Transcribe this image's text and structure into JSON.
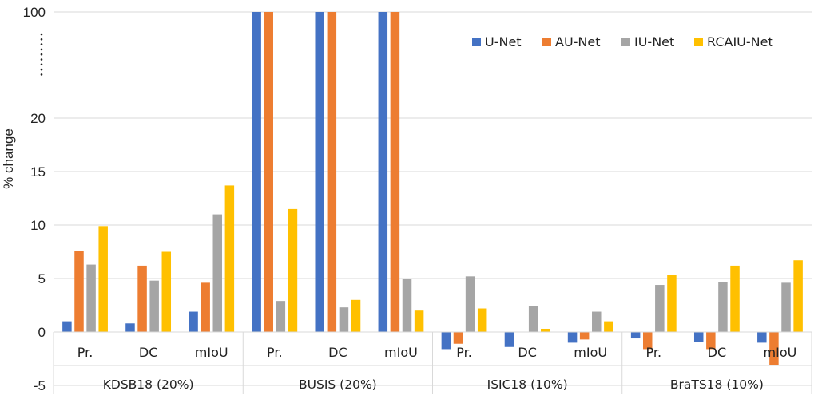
{
  "chart_data": {
    "type": "bar",
    "ylabel": "% change",
    "y_ticks": [
      "100",
      "20",
      "15",
      "10",
      "5",
      "0",
      "-5"
    ],
    "y_break_marker": "⋮⋮",
    "broken_axis": true,
    "categories": [
      "Pr.",
      "DC",
      "mIoU",
      "Pr.",
      "DC",
      "mIoU",
      "Pr.",
      "DC",
      "mIoU",
      "Pr.",
      "DC",
      "mIoU"
    ],
    "groups": [
      "KDSB18 (20%)",
      "BUSIS (20%)",
      "ISIC18 (10%)",
      "BraTS18 (10%)"
    ],
    "series": [
      {
        "name": "U-Net",
        "color": "#4472C4",
        "values": [
          1.0,
          0.8,
          1.9,
          100,
          100,
          100,
          -1.6,
          -1.4,
          -1.0,
          -0.6,
          -0.9,
          -1.0
        ]
      },
      {
        "name": "AU-Net",
        "color": "#ED7D31",
        "values": [
          7.6,
          6.2,
          4.6,
          100,
          100,
          100,
          -1.1,
          0,
          -0.7,
          -1.6,
          -1.6,
          -3.1
        ]
      },
      {
        "name": "IU-Net",
        "color": "#A5A5A5",
        "values": [
          6.3,
          4.8,
          11.0,
          2.9,
          2.3,
          5.0,
          5.2,
          2.4,
          1.9,
          4.4,
          4.7,
          4.6
        ]
      },
      {
        "name": "RCAIU-Net",
        "color": "#FFC000",
        "values": [
          9.9,
          7.5,
          13.7,
          11.5,
          3.0,
          2.0,
          2.2,
          0.3,
          1.0,
          5.3,
          6.2,
          6.7
        ]
      }
    ],
    "legend_position": "top-right",
    "grid": true
  }
}
